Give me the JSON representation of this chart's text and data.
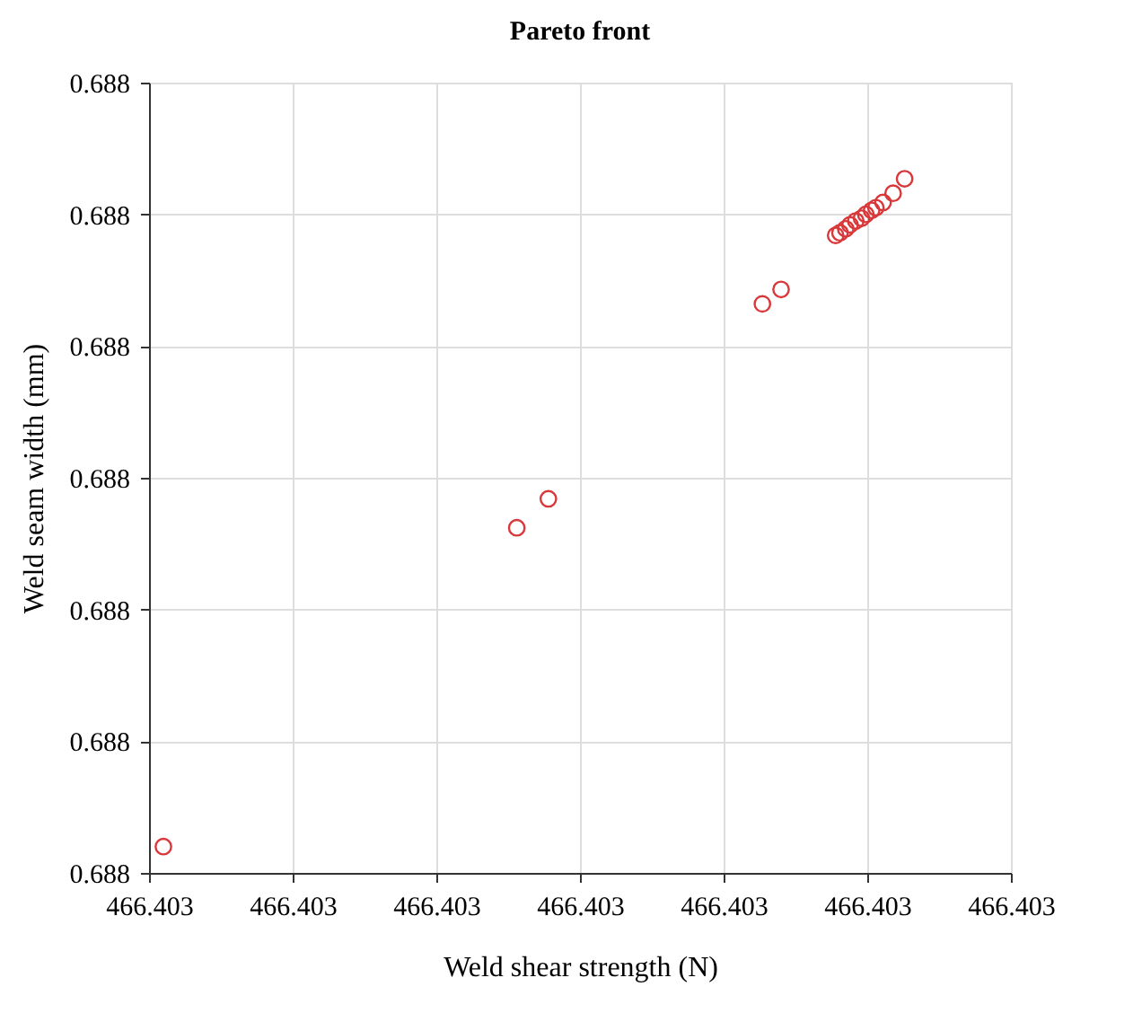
{
  "chart_data": {
    "type": "scatter",
    "title": "Pareto front",
    "xlabel": "Weld shear strength (N)",
    "ylabel": "Weld seam width (mm)",
    "x": [
      466.403001,
      466.4030256,
      466.4030278,
      466.4030427,
      466.403044,
      466.4030478,
      466.4030481,
      466.4030485,
      466.4030488,
      466.4030492,
      466.4030496,
      466.4030499,
      466.4030503,
      466.4030506,
      466.4030511,
      466.4030518,
      466.4030526
    ],
    "series": [
      {
        "color": "#d9383a",
        "values": [
          0.688002,
          0.6880262,
          0.6880284,
          0.6880432,
          0.6880443,
          0.6880484,
          0.6880486,
          0.6880489,
          0.6880492,
          0.6880495,
          0.6880497,
          0.68805,
          0.6880503,
          0.6880505,
          0.6880509,
          0.6880516,
          0.6880527
        ]
      }
    ],
    "xlim": [
      466.403,
      466.40306
    ],
    "ylim": [
      0.688,
      0.68806
    ],
    "xticks": [
      {
        "value": 466.403,
        "label": "466.403"
      },
      {
        "value": 466.40301,
        "label": "466.403"
      },
      {
        "value": 466.40302,
        "label": "466.403"
      },
      {
        "value": 466.40303,
        "label": "466.403"
      },
      {
        "value": 466.40304,
        "label": "466.403"
      },
      {
        "value": 466.40305,
        "label": "466.403"
      },
      {
        "value": 466.40306,
        "label": "466.403"
      }
    ],
    "yticks": [
      {
        "value": 0.688,
        "label": "0.688"
      },
      {
        "value": 0.68801,
        "label": "0.688"
      },
      {
        "value": 0.68802,
        "label": "0.688"
      },
      {
        "value": 0.68803,
        "label": "0.688"
      },
      {
        "value": 0.68804,
        "label": "0.688"
      },
      {
        "value": 0.68805,
        "label": "0.688"
      },
      {
        "value": 0.68806,
        "label": "0.688"
      }
    ],
    "grid": true,
    "marker": "circle"
  }
}
